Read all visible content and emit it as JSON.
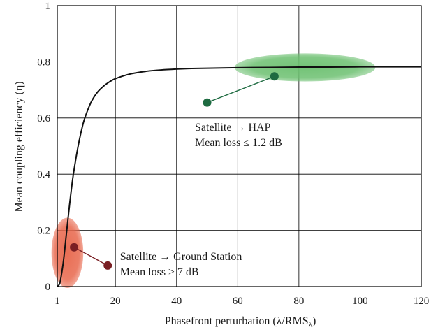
{
  "chart_data": {
    "type": "line",
    "title": "",
    "xlabel": "Phasefront perturbation (λ/RMS",
    "xlabel_sub": "λ",
    "xlabel_end": ")",
    "ylabel": "Mean coupling efficiency (η)",
    "xlim": [
      1,
      120
    ],
    "ylim": [
      0,
      1
    ],
    "xticks": [
      1,
      20,
      40,
      60,
      80,
      100,
      120
    ],
    "xtick_labels": [
      "1",
      "20",
      "40",
      "60",
      "80",
      "100",
      "120"
    ],
    "yticks": [
      0,
      0.2,
      0.4,
      0.6,
      0.8,
      1
    ],
    "ytick_labels": [
      "0",
      "0.2",
      "0.4",
      "0.6",
      "0.8",
      "1"
    ],
    "grid": true,
    "series": [
      {
        "x": [
          1,
          1.5,
          2,
          3,
          4,
          5,
          6,
          7,
          8,
          9,
          10,
          12,
          14,
          16,
          18,
          20,
          25,
          30,
          35,
          40,
          45,
          50,
          60,
          70,
          80,
          90,
          100,
          110,
          120
        ],
        "y": [
          0.0,
          0.005,
          0.02,
          0.09,
          0.19,
          0.29,
          0.38,
          0.45,
          0.51,
          0.56,
          0.6,
          0.655,
          0.69,
          0.712,
          0.728,
          0.74,
          0.757,
          0.766,
          0.771,
          0.774,
          0.776,
          0.777,
          0.779,
          0.78,
          0.781,
          0.781,
          0.782,
          0.782,
          0.782
        ]
      }
    ],
    "regions": [
      {
        "cx": 82,
        "cy": 0.78,
        "rx": 23,
        "ry": 0.05,
        "color": "#6cc070"
      },
      {
        "cx": 4.3,
        "cy": 0.12,
        "rx": 5.2,
        "ry": 0.125,
        "color": "#e8674c"
      }
    ],
    "annotations": [
      {
        "lines": [
          "Satellite → HAP",
          "Mean loss ≤ 1.2 dB"
        ],
        "target": [
          72,
          0.748
        ],
        "dot": [
          50,
          0.655
        ],
        "text_pos": [
          46,
          0.555
        ],
        "color": "#1e6b41"
      },
      {
        "lines": [
          "Satellite → Ground Station",
          "Mean loss ≥ 7 dB"
        ],
        "target": [
          6.5,
          0.14
        ],
        "dot": [
          17.5,
          0.075
        ],
        "text_pos": [
          21.5,
          0.095
        ],
        "color": "#7a1f24"
      }
    ]
  }
}
